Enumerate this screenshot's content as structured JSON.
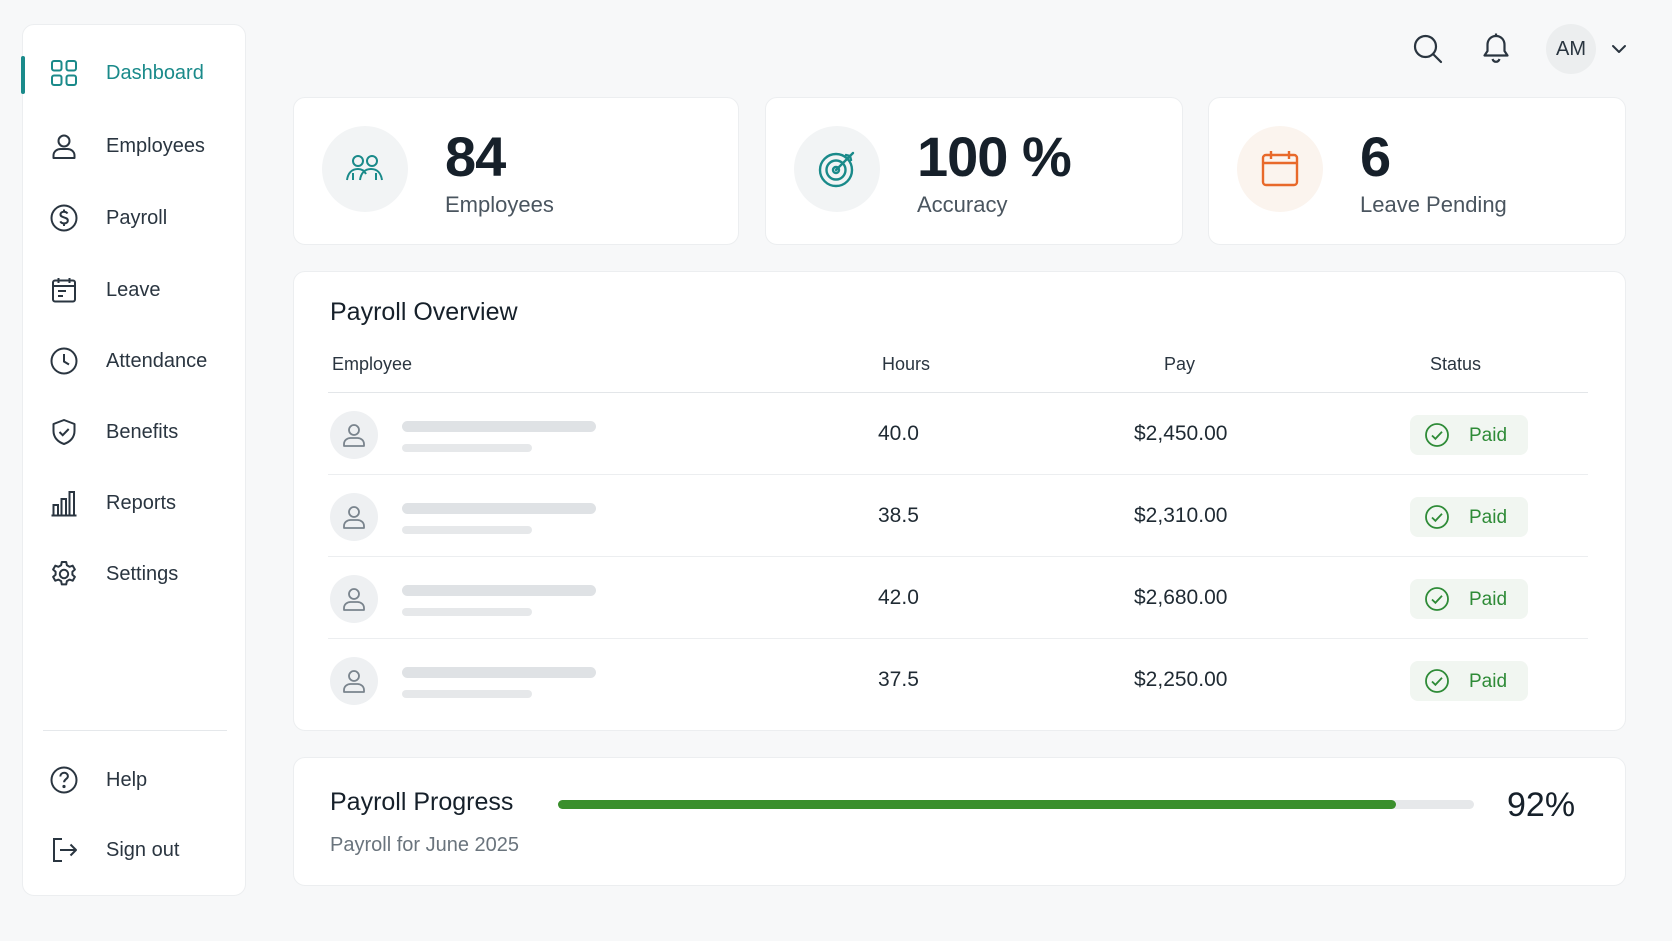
{
  "sidebar": {
    "items": [
      {
        "label": "Dashboard",
        "icon": "grid-icon",
        "active": true
      },
      {
        "label": "Employees",
        "icon": "user-icon"
      },
      {
        "label": "Payroll",
        "icon": "dollar-icon"
      },
      {
        "label": "Leave",
        "icon": "calendar-icon"
      },
      {
        "label": "Attendance",
        "icon": "clock-icon"
      },
      {
        "label": "Benefits",
        "icon": "shield-check-icon"
      },
      {
        "label": "Reports",
        "icon": "bar-chart-icon"
      },
      {
        "label": "Settings",
        "icon": "gear-icon"
      }
    ],
    "footer_items": [
      {
        "label": "Help",
        "icon": "help-icon"
      },
      {
        "label": "Sign out",
        "icon": "sign-out-icon"
      }
    ]
  },
  "header": {
    "avatar_initials": "AM",
    "icons": [
      "search-icon",
      "bell-icon",
      "chevron-down-icon"
    ]
  },
  "stats": [
    {
      "value": "84",
      "label": "Employees",
      "icon": "people-icon",
      "color": "#1a8a8a"
    },
    {
      "value": "100 %",
      "label": "Accuracy",
      "icon": "target-icon",
      "color": "#1a8a8a"
    },
    {
      "value": "6",
      "label": "Leave Pending",
      "icon": "calendar-icon",
      "color": "#e8692a"
    }
  ],
  "overview": {
    "title": "Payroll Overview",
    "columns": {
      "employee": "Employee",
      "hours": "Hours",
      "pay": "Pay",
      "status": "Status"
    },
    "rows": [
      {
        "hours": "40.0",
        "pay": "$2,450.00",
        "status": "Paid"
      },
      {
        "hours": "38.5",
        "pay": "$2,310.00",
        "status": "Paid"
      },
      {
        "hours": "42.0",
        "pay": "$2,680.00",
        "status": "Paid"
      },
      {
        "hours": "37.5",
        "pay": "$2,250.00",
        "status": "Paid"
      }
    ]
  },
  "progress": {
    "title": "Payroll Progress",
    "subtitle": "Payroll for June 2025",
    "percent_label": "92%",
    "fraction": 0.915,
    "fill_color": "#3a8f2c"
  },
  "colors": {
    "accent": "#1a8a8a",
    "success": "#2e8b37",
    "warning": "#e8692a"
  }
}
